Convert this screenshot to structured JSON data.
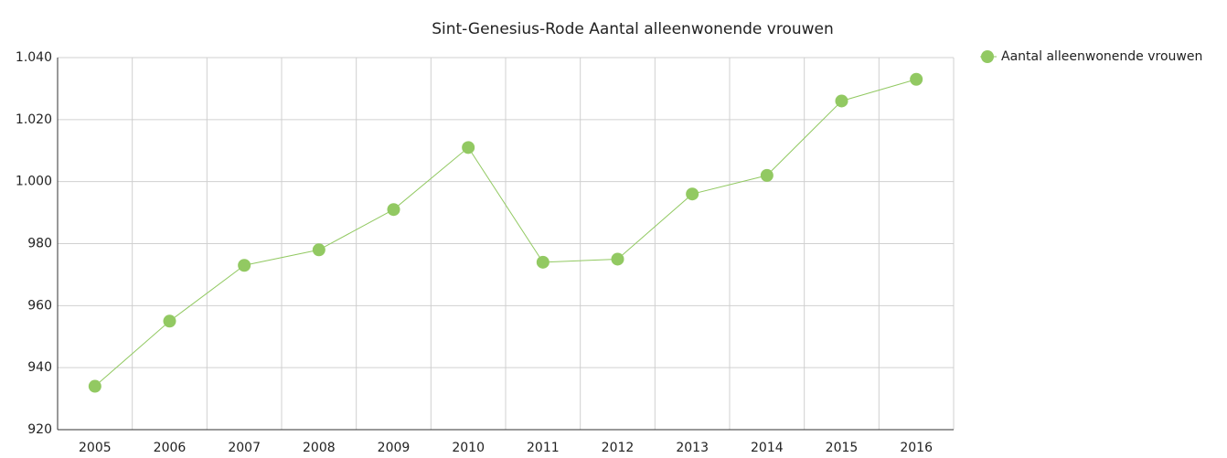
{
  "chart_data": {
    "type": "line",
    "title": "Sint-Genesius-Rode  Aantal alleenwonende vrouwen",
    "categories": [
      "2005",
      "2006",
      "2007",
      "2008",
      "2009",
      "2010",
      "2011",
      "2012",
      "2013",
      "2014",
      "2015",
      "2016"
    ],
    "series": [
      {
        "name": "Aantal alleenwonende vrouwen",
        "color": "#92c962",
        "values": [
          934,
          955,
          973,
          978,
          991,
          1011,
          974,
          975,
          996,
          1002,
          1026,
          1033
        ]
      }
    ],
    "ylim": [
      920,
      1040
    ],
    "yticks": [
      920,
      940,
      960,
      980,
      {
        "value": 1000,
        "label": "1.000"
      },
      {
        "value": 1020,
        "label": "1.020"
      },
      {
        "value": 1040,
        "label": "1.040"
      }
    ],
    "grid": true,
    "legend": "top-right"
  }
}
